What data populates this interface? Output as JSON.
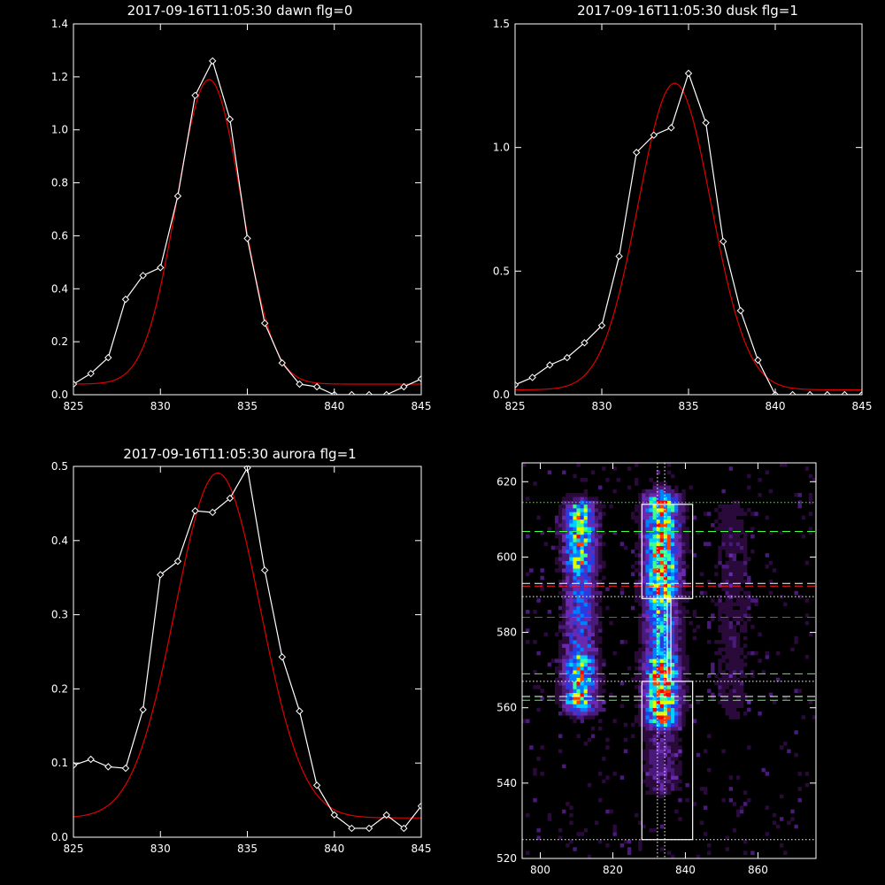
{
  "chart_data": [
    {
      "type": "line",
      "title": "2017-09-16T11:05:30 dawn flg=0",
      "xlim": [
        825,
        845
      ],
      "ylim": [
        0,
        1.4
      ],
      "xticks": [
        825,
        830,
        835,
        840,
        845
      ],
      "yticks": [
        0.0,
        0.2,
        0.4,
        0.6,
        0.8,
        1.0,
        1.2,
        1.4
      ],
      "ytick_labels": [
        "0.0",
        "0.2",
        "0.4",
        "0.6",
        "0.8",
        "1.0",
        "1.2",
        "1.4"
      ],
      "series": [
        {
          "kind": "data",
          "color": "#ffffff",
          "marker": "diamond",
          "x": [
            825,
            826,
            827,
            828,
            829,
            830,
            831,
            832,
            833,
            834,
            835,
            836,
            837,
            838,
            839,
            840,
            841,
            842,
            843,
            844,
            845
          ],
          "y": [
            0.04,
            0.08,
            0.14,
            0.36,
            0.45,
            0.48,
            0.75,
            1.13,
            1.26,
            1.04,
            0.59,
            0.27,
            0.12,
            0.04,
            0.03,
            0.0,
            0.0,
            0.0,
            0.0,
            0.03,
            0.06
          ]
        },
        {
          "kind": "fit",
          "color": "#e00000",
          "model": "gaussian",
          "amplitude": 1.15,
          "center": 832.8,
          "sigma": 1.85,
          "baseline": 0.04
        }
      ]
    },
    {
      "type": "line",
      "title": "2017-09-16T11:05:30 dusk flg=1",
      "xlim": [
        825,
        845
      ],
      "ylim": [
        0,
        1.5
      ],
      "xticks": [
        825,
        830,
        835,
        840,
        845
      ],
      "yticks": [
        0.0,
        0.5,
        1.0,
        1.5
      ],
      "ytick_labels": [
        "0.0",
        "0.5",
        "1.0",
        "1.5"
      ],
      "series": [
        {
          "kind": "data",
          "color": "#ffffff",
          "marker": "diamond",
          "x": [
            825,
            826,
            827,
            828,
            829,
            830,
            831,
            832,
            833,
            834,
            835,
            836,
            837,
            838,
            839,
            840,
            841,
            842,
            843,
            844,
            845
          ],
          "y": [
            0.04,
            0.07,
            0.12,
            0.15,
            0.21,
            0.28,
            0.56,
            0.98,
            1.05,
            1.08,
            1.3,
            1.1,
            0.62,
            0.34,
            0.14,
            0.0,
            0.0,
            0.0,
            0.0,
            0.0,
            0.0
          ]
        },
        {
          "kind": "fit",
          "color": "#e00000",
          "model": "gaussian",
          "amplitude": 1.24,
          "center": 834.2,
          "sigma": 2.1,
          "baseline": 0.02
        }
      ]
    },
    {
      "type": "line",
      "title": "2017-09-16T11:05:30 aurora flg=1",
      "xlim": [
        825,
        845
      ],
      "ylim": [
        0,
        0.5
      ],
      "xticks": [
        825,
        830,
        835,
        840,
        845
      ],
      "yticks": [
        0.0,
        0.1,
        0.2,
        0.3,
        0.4,
        0.5
      ],
      "ytick_labels": [
        "0.0",
        "0.1",
        "0.2",
        "0.3",
        "0.4",
        "0.5"
      ],
      "series": [
        {
          "kind": "data",
          "color": "#ffffff",
          "marker": "diamond",
          "x": [
            825,
            826,
            827,
            828,
            829,
            830,
            831,
            832,
            833,
            834,
            835,
            836,
            837,
            838,
            839,
            840,
            841,
            842,
            843,
            844,
            845
          ],
          "y": [
            0.097,
            0.105,
            0.095,
            0.093,
            0.172,
            0.354,
            0.372,
            0.44,
            0.438,
            0.457,
            0.498,
            0.36,
            0.243,
            0.17,
            0.07,
            0.03,
            0.012,
            0.012,
            0.03,
            0.012,
            0.042
          ]
        },
        {
          "kind": "fit",
          "color": "#e00000",
          "model": "gaussian",
          "amplitude": 0.465,
          "center": 833.3,
          "sigma": 2.45,
          "baseline": 0.026,
          "x_start": 825,
          "start_value": 0.04
        }
      ]
    },
    {
      "type": "heatmap",
      "xlim": [
        795,
        876
      ],
      "ylim": [
        520,
        625
      ],
      "xticks": [
        800,
        820,
        840,
        860
      ],
      "yticks": [
        520,
        540,
        560,
        580,
        600,
        620
      ],
      "colormap": [
        "#000000",
        "#2a0a3a",
        "#4a1a7a",
        "#6a2ab0",
        "#2a3ae0",
        "#0080ff",
        "#00d0ff",
        "#40ff90",
        "#e0ff00",
        "#ff4000",
        "#ff0000"
      ],
      "emission_columns": [
        {
          "center": 811,
          "width": 3.0,
          "bands": [
            [
              562,
              572,
              0.8
            ],
            [
              598,
              612,
              0.75
            ],
            [
              575,
              596,
              0.45
            ]
          ]
        },
        {
          "center": 833.5,
          "width": 3.2,
          "bands": [
            [
              558,
              572,
              0.95
            ],
            [
              590,
              614,
              0.9
            ],
            [
              572,
              590,
              0.6
            ],
            [
              540,
              558,
              0.25
            ]
          ]
        },
        {
          "center": 853,
          "width": 4.0,
          "bands": [
            [
              560,
              612,
              0.12
            ]
          ]
        }
      ],
      "rectangles": [
        {
          "x0": 828,
          "x1": 842,
          "y0": 589,
          "y1": 614,
          "color": "#ffffff"
        },
        {
          "x0": 828,
          "x1": 842,
          "y0": 525,
          "y1": 567,
          "color": "#ffffff"
        },
        {
          "x0": 835,
          "x1": 836,
          "y0": 567,
          "y1": 589,
          "color": "#ffffff"
        }
      ],
      "vlines": [
        {
          "x": 832.3,
          "color": "#ffffff",
          "style": "dotted"
        },
        {
          "x": 834.3,
          "color": "#ffffff",
          "style": "dotted"
        }
      ],
      "hlines": [
        {
          "y": 614.5,
          "color": "#44ff44",
          "style": "dotted"
        },
        {
          "y": 606.8,
          "color": "#44ff44",
          "style": "dashed"
        },
        {
          "y": 593.0,
          "color": "#ffffff",
          "style": "dashed"
        },
        {
          "y": 592.3,
          "color": "#ff2020",
          "style": "dashed"
        },
        {
          "y": 589.5,
          "color": "#ffffff",
          "style": "dotted"
        },
        {
          "y": 584.0,
          "color": "#ff2020",
          "style": "dashed"
        },
        {
          "y": 569.0,
          "color": "#44ff44",
          "style": "dashed"
        },
        {
          "y": 567.0,
          "color": "#ffffff",
          "style": "dotted"
        },
        {
          "y": 563.0,
          "color": "#ffffff",
          "style": "dashed"
        },
        {
          "y": 562.0,
          "color": "#44ff44",
          "style": "dashed"
        },
        {
          "y": 525.0,
          "color": "#ffffff",
          "style": "dotted"
        }
      ]
    }
  ]
}
